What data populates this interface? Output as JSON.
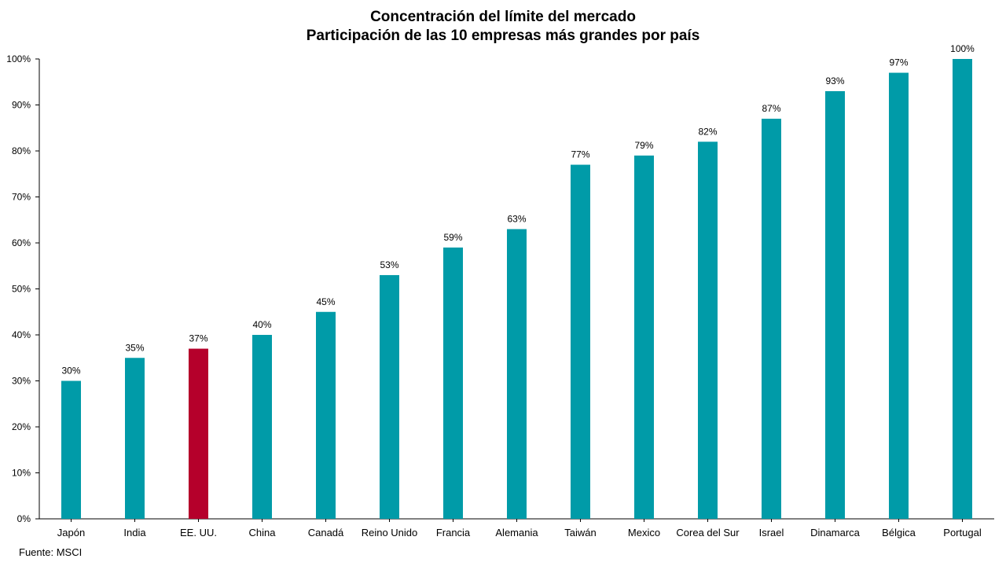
{
  "chart_data": {
    "type": "bar",
    "title": "Concentración del límite del mercado",
    "subtitle": "Participación de las 10 empresas más grandes por país",
    "categories": [
      "Japón",
      "India",
      "EE. UU.",
      "China",
      "Canadá",
      "Reino Unido",
      "Francia",
      "Alemania",
      "Taiwán",
      "Mexico",
      "Corea del Sur",
      "Israel",
      "Dinamarca",
      "Bélgica",
      "Portugal"
    ],
    "values": [
      30,
      35,
      37,
      40,
      45,
      53,
      59,
      63,
      77,
      79,
      82,
      87,
      93,
      97,
      100
    ],
    "data_labels": [
      "30%",
      "35%",
      "37%",
      "40%",
      "45%",
      "53%",
      "59%",
      "63%",
      "77%",
      "79%",
      "82%",
      "87%",
      "93%",
      "97%",
      "100%"
    ],
    "ylim": [
      0,
      100
    ],
    "yticks": [
      "0%",
      "10%",
      "20%",
      "30%",
      "40%",
      "50%",
      "60%",
      "70%",
      "80%",
      "90%",
      "100%"
    ],
    "xlabel": "",
    "ylabel": "",
    "grid": false,
    "colors": {
      "bar": "#009ba8",
      "highlight": "#b5002b",
      "axis": "#000000"
    },
    "highlight_category": "EE. UU.",
    "source": "Fuente: MSCI"
  }
}
